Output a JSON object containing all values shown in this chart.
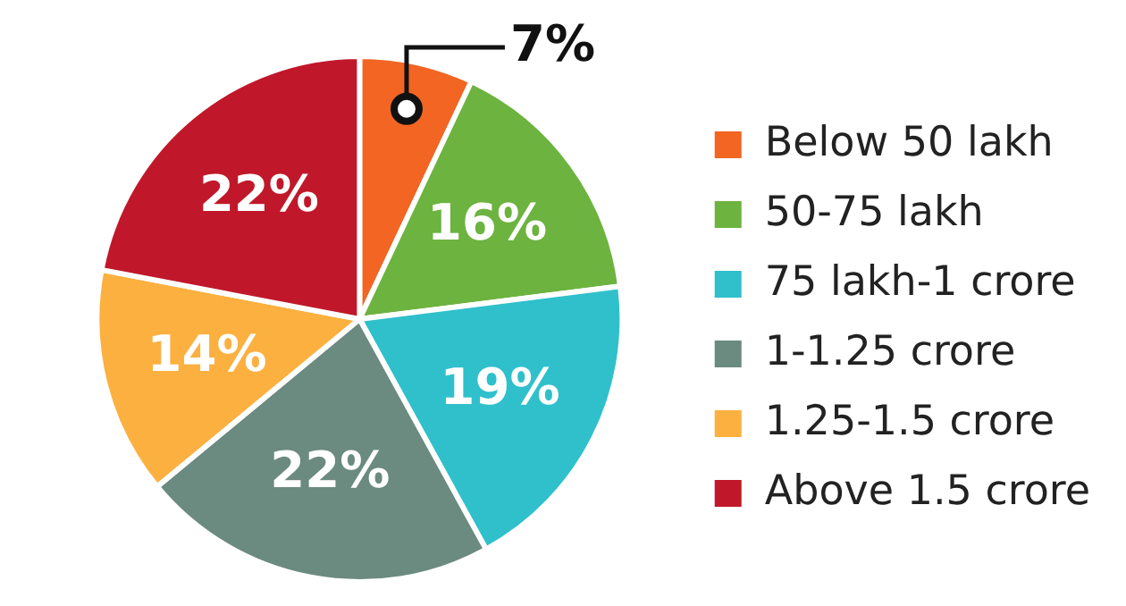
{
  "chart_data": {
    "type": "pie",
    "categories": [
      "Below 50 lakh",
      "50-75 lakh",
      "75 lakh-1 crore",
      "1-1.25 crore",
      "1.25-1.5 crore",
      "Above 1.5 crore"
    ],
    "values": [
      7,
      16,
      19,
      22,
      14,
      22
    ],
    "colors": [
      "#f26522",
      "#6db33f",
      "#2fc0cc",
      "#6b8a80",
      "#fbb040",
      "#c0182a"
    ],
    "value_labels": [
      "7%",
      "16%",
      "19%",
      "22%",
      "14%",
      "22%"
    ],
    "legend": "right"
  }
}
